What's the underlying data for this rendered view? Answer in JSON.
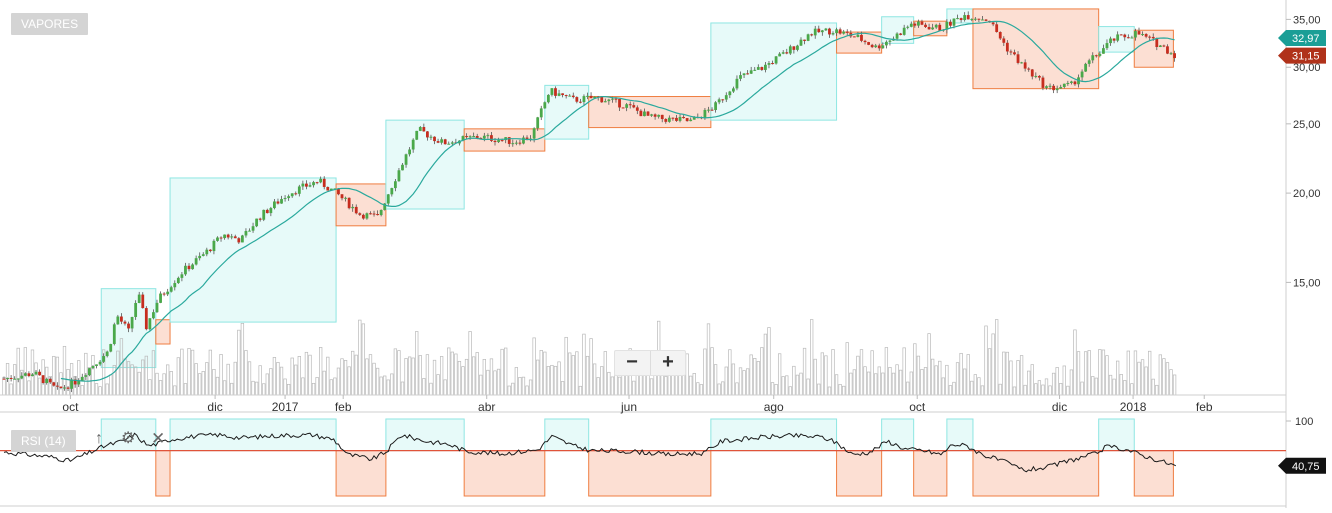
{
  "panel": {
    "label": "VAPORES",
    "rsi_label": "RSI (14)"
  },
  "zoom": {
    "minus": "−",
    "plus": "+"
  },
  "price_tags": {
    "last": "32,97",
    "current": "31,15",
    "rsi_current": "40,75"
  },
  "colors": {
    "up": "#4aa84a",
    "down": "#c62d1f",
    "teal_fill": "#e3f9f8",
    "teal_stroke": "#8ee6e2",
    "orange_fill": "#fbd9cb",
    "orange_stroke": "#ef7d40",
    "ma": "#2aa99d",
    "rsi_ref": "#e0533a",
    "tag_green": "#1a9e96",
    "tag_red": "#b0321a"
  },
  "icons": {
    "arrow": "arrow-up-icon",
    "gear": "gear-icon",
    "close": "close-icon"
  },
  "chart_data": [
    {
      "type": "candlestick",
      "y_axis": {
        "ticks": [
          "15,00",
          "20,00",
          "25,00",
          "30,00",
          "35,00"
        ],
        "scale": "log"
      },
      "x_axis": {
        "ticks": [
          "oct",
          "dic",
          "2017",
          "feb",
          "abr",
          "jun",
          "ago",
          "oct",
          "dic",
          "2018",
          "feb"
        ]
      },
      "close_waypoints": [
        {
          "d": 0,
          "v": 11.0
        },
        {
          "d": 25,
          "v": 11.2
        },
        {
          "d": 45,
          "v": 10.6
        },
        {
          "d": 60,
          "v": 10.9
        },
        {
          "d": 75,
          "v": 11.5
        },
        {
          "d": 88,
          "v": 12.0
        },
        {
          "d": 95,
          "v": 13.5
        },
        {
          "d": 105,
          "v": 12.8
        },
        {
          "d": 113,
          "v": 14.5
        },
        {
          "d": 120,
          "v": 13.0
        },
        {
          "d": 130,
          "v": 14.2
        },
        {
          "d": 150,
          "v": 15.5
        },
        {
          "d": 170,
          "v": 16.5
        },
        {
          "d": 185,
          "v": 17.5
        },
        {
          "d": 200,
          "v": 17.2
        },
        {
          "d": 215,
          "v": 18.5
        },
        {
          "d": 240,
          "v": 20.0
        },
        {
          "d": 265,
          "v": 20.8
        },
        {
          "d": 280,
          "v": 20.0
        },
        {
          "d": 300,
          "v": 18.7
        },
        {
          "d": 315,
          "v": 18.5
        },
        {
          "d": 330,
          "v": 21.0
        },
        {
          "d": 350,
          "v": 24.5
        },
        {
          "d": 370,
          "v": 23.5
        },
        {
          "d": 400,
          "v": 24.0
        },
        {
          "d": 430,
          "v": 23.6
        },
        {
          "d": 445,
          "v": 24.0
        },
        {
          "d": 460,
          "v": 27.8
        },
        {
          "d": 480,
          "v": 27.0
        },
        {
          "d": 500,
          "v": 27.2
        },
        {
          "d": 525,
          "v": 26.5
        },
        {
          "d": 545,
          "v": 25.5
        },
        {
          "d": 580,
          "v": 25.2
        },
        {
          "d": 600,
          "v": 26.5
        },
        {
          "d": 620,
          "v": 29.0
        },
        {
          "d": 640,
          "v": 30.0
        },
        {
          "d": 660,
          "v": 31.5
        },
        {
          "d": 680,
          "v": 33.5
        },
        {
          "d": 700,
          "v": 33.8
        },
        {
          "d": 720,
          "v": 33.0
        },
        {
          "d": 735,
          "v": 32.0
        },
        {
          "d": 750,
          "v": 33.0
        },
        {
          "d": 765,
          "v": 34.5
        },
        {
          "d": 790,
          "v": 34.0
        },
        {
          "d": 810,
          "v": 35.5
        },
        {
          "d": 830,
          "v": 35.0
        },
        {
          "d": 845,
          "v": 32.0
        },
        {
          "d": 860,
          "v": 30.0
        },
        {
          "d": 880,
          "v": 28.0
        },
        {
          "d": 900,
          "v": 28.3
        },
        {
          "d": 915,
          "v": 30.5
        },
        {
          "d": 935,
          "v": 32.8
        },
        {
          "d": 955,
          "v": 33.5
        },
        {
          "d": 975,
          "v": 32.2
        },
        {
          "d": 988,
          "v": 31.15
        }
      ],
      "zones": [
        {
          "kind": "up",
          "d1": 82,
          "d2": 128,
          "lo": 11.4,
          "hi": 14.7
        },
        {
          "kind": "down",
          "d1": 128,
          "d2": 140,
          "lo": 12.3,
          "hi": 13.3
        },
        {
          "kind": "up",
          "d1": 140,
          "d2": 280,
          "lo": 13.2,
          "hi": 21.0
        },
        {
          "kind": "down",
          "d1": 280,
          "d2": 322,
          "lo": 18.0,
          "hi": 20.6
        },
        {
          "kind": "up",
          "d1": 322,
          "d2": 388,
          "lo": 19.0,
          "hi": 25.3
        },
        {
          "kind": "down",
          "d1": 388,
          "d2": 456,
          "lo": 22.9,
          "hi": 24.6
        },
        {
          "kind": "up",
          "d1": 456,
          "d2": 493,
          "lo": 23.8,
          "hi": 28.3
        },
        {
          "kind": "down",
          "d1": 493,
          "d2": 596,
          "lo": 24.7,
          "hi": 27.3
        },
        {
          "kind": "up",
          "d1": 596,
          "d2": 702,
          "lo": 25.3,
          "hi": 34.6
        },
        {
          "kind": "down",
          "d1": 702,
          "d2": 740,
          "lo": 31.4,
          "hi": 33.6
        },
        {
          "kind": "up",
          "d1": 740,
          "d2": 767,
          "lo": 32.4,
          "hi": 35.3
        },
        {
          "kind": "down",
          "d1": 767,
          "d2": 795,
          "lo": 33.2,
          "hi": 34.8
        },
        {
          "kind": "up",
          "d1": 795,
          "d2": 817,
          "lo": 34.6,
          "hi": 36.2
        },
        {
          "kind": "down",
          "d1": 817,
          "d2": 923,
          "lo": 28.0,
          "hi": 36.2
        },
        {
          "kind": "up",
          "d1": 923,
          "d2": 953,
          "lo": 31.5,
          "hi": 34.2
        },
        {
          "kind": "down",
          "d1": 953,
          "d2": 986,
          "lo": 30.0,
          "hi": 33.8
        }
      ]
    },
    {
      "type": "line",
      "name": "RSI (14)",
      "ylim": [
        0,
        100
      ],
      "y_ticks": [
        "100"
      ],
      "reference": 60,
      "current": 40.75,
      "waypoints": [
        {
          "d": 0,
          "v": 58
        },
        {
          "d": 20,
          "v": 55
        },
        {
          "d": 40,
          "v": 52
        },
        {
          "d": 55,
          "v": 47
        },
        {
          "d": 70,
          "v": 56
        },
        {
          "d": 85,
          "v": 66
        },
        {
          "d": 100,
          "v": 72
        },
        {
          "d": 110,
          "v": 80
        },
        {
          "d": 122,
          "v": 66
        },
        {
          "d": 130,
          "v": 69
        },
        {
          "d": 140,
          "v": 74
        },
        {
          "d": 160,
          "v": 78
        },
        {
          "d": 180,
          "v": 80
        },
        {
          "d": 200,
          "v": 76
        },
        {
          "d": 230,
          "v": 79
        },
        {
          "d": 260,
          "v": 80
        },
        {
          "d": 278,
          "v": 74
        },
        {
          "d": 290,
          "v": 55
        },
        {
          "d": 310,
          "v": 49
        },
        {
          "d": 322,
          "v": 58
        },
        {
          "d": 335,
          "v": 80
        },
        {
          "d": 355,
          "v": 72
        },
        {
          "d": 375,
          "v": 68
        },
        {
          "d": 390,
          "v": 59
        },
        {
          "d": 420,
          "v": 56
        },
        {
          "d": 450,
          "v": 61
        },
        {
          "d": 462,
          "v": 78
        },
        {
          "d": 480,
          "v": 66
        },
        {
          "d": 495,
          "v": 60
        },
        {
          "d": 530,
          "v": 59
        },
        {
          "d": 560,
          "v": 55
        },
        {
          "d": 590,
          "v": 57
        },
        {
          "d": 605,
          "v": 72
        },
        {
          "d": 640,
          "v": 77
        },
        {
          "d": 665,
          "v": 79
        },
        {
          "d": 690,
          "v": 77
        },
        {
          "d": 702,
          "v": 70
        },
        {
          "d": 715,
          "v": 55
        },
        {
          "d": 730,
          "v": 58
        },
        {
          "d": 745,
          "v": 72
        },
        {
          "d": 760,
          "v": 62
        },
        {
          "d": 775,
          "v": 60
        },
        {
          "d": 790,
          "v": 55
        },
        {
          "d": 800,
          "v": 68
        },
        {
          "d": 812,
          "v": 66
        },
        {
          "d": 825,
          "v": 55
        },
        {
          "d": 845,
          "v": 45
        },
        {
          "d": 860,
          "v": 35
        },
        {
          "d": 880,
          "v": 39
        },
        {
          "d": 900,
          "v": 48
        },
        {
          "d": 920,
          "v": 56
        },
        {
          "d": 930,
          "v": 65
        },
        {
          "d": 945,
          "v": 62
        },
        {
          "d": 960,
          "v": 54
        },
        {
          "d": 975,
          "v": 47
        },
        {
          "d": 988,
          "v": 40.75
        }
      ],
      "zones": [
        {
          "kind": "up",
          "d1": 82,
          "d2": 128
        },
        {
          "kind": "down",
          "d1": 128,
          "d2": 140
        },
        {
          "kind": "up",
          "d1": 140,
          "d2": 280
        },
        {
          "kind": "down",
          "d1": 280,
          "d2": 322
        },
        {
          "kind": "up",
          "d1": 322,
          "d2": 388
        },
        {
          "kind": "down",
          "d1": 388,
          "d2": 456
        },
        {
          "kind": "up",
          "d1": 456,
          "d2": 493
        },
        {
          "kind": "down",
          "d1": 493,
          "d2": 596
        },
        {
          "kind": "up",
          "d1": 596,
          "d2": 702
        },
        {
          "kind": "down",
          "d1": 702,
          "d2": 740
        },
        {
          "kind": "up",
          "d1": 740,
          "d2": 767
        },
        {
          "kind": "down",
          "d1": 767,
          "d2": 795
        },
        {
          "kind": "up",
          "d1": 795,
          "d2": 817
        },
        {
          "kind": "down",
          "d1": 817,
          "d2": 923
        },
        {
          "kind": "up",
          "d1": 923,
          "d2": 953
        },
        {
          "kind": "down",
          "d1": 953,
          "d2": 986
        }
      ]
    }
  ]
}
